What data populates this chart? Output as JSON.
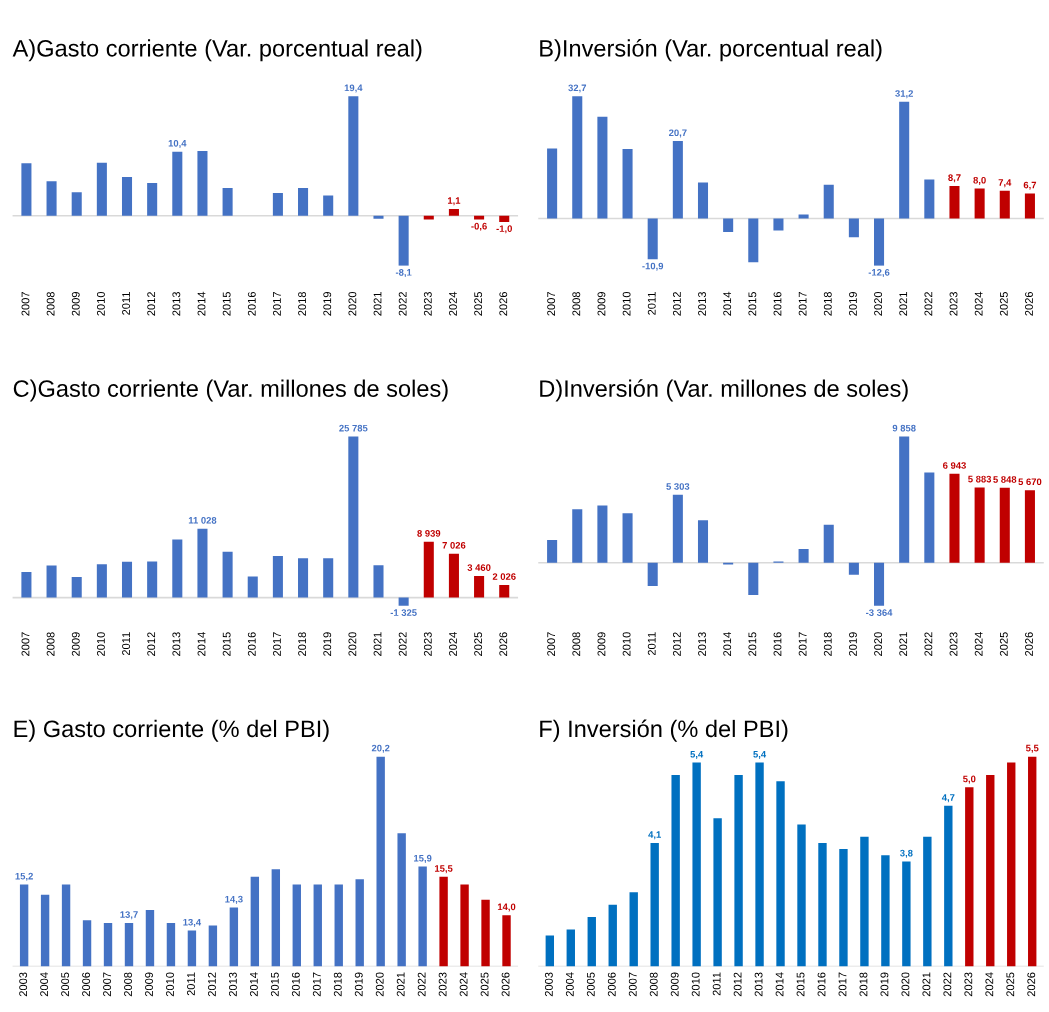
{
  "chart_data": [
    {
      "type": "bar",
      "title": "A)Gasto corriente (Var. porcentual real)",
      "tick_labels": "x",
      "categories": [
        "2007",
        "2008",
        "2009",
        "2010",
        "2011",
        "2012",
        "2013",
        "2014",
        "2015",
        "2016",
        "2017",
        "2018",
        "2019",
        "2020",
        "2021",
        "2022",
        "2023",
        "2024",
        "2025",
        "2026"
      ],
      "values": [
        8.5,
        5.6,
        3.8,
        8.6,
        6.3,
        5.3,
        10.4,
        10.5,
        4.5,
        0.0,
        3.7,
        4.5,
        3.3,
        19.4,
        -0.5,
        -8.1,
        -0.6,
        1.1,
        -0.6,
        -1.0
      ],
      "colors": [
        "#4472c4",
        "#4472c4",
        "#4472c4",
        "#4472c4",
        "#4472c4",
        "#4472c4",
        "#4472c4",
        "#4472c4",
        "#4472c4",
        "#4472c4",
        "#4472c4",
        "#4472c4",
        "#4472c4",
        "#4472c4",
        "#4472c4",
        "#4472c4",
        "#c00000",
        "#c00000",
        "#c00000",
        "#c00000"
      ],
      "value_labels": [
        null,
        null,
        null,
        null,
        null,
        null,
        "10,4",
        null,
        null,
        null,
        null,
        null,
        null,
        "19,4",
        null,
        "-8,1",
        null,
        "1,1",
        "-0,6",
        "-1,0"
      ],
      "grid": false
    },
    {
      "type": "bar",
      "title": "B)Inversión (Var. porcentual real)",
      "tick_labels": "x",
      "categories": [
        "2007",
        "2008",
        "2009",
        "2010",
        "2011",
        "2012",
        "2013",
        "2014",
        "2015",
        "2016",
        "2017",
        "2018",
        "2019",
        "2020",
        "2021",
        "2022",
        "2023",
        "2024",
        "2025",
        "2026"
      ],
      "values": [
        18.7,
        32.7,
        27.2,
        18.6,
        -10.9,
        20.7,
        9.6,
        -3.6,
        -11.7,
        -3.2,
        1.1,
        9.0,
        -5.0,
        -12.6,
        31.2,
        10.4,
        8.7,
        8.0,
        7.4,
        6.7
      ],
      "colors": [
        "#4472c4",
        "#4472c4",
        "#4472c4",
        "#4472c4",
        "#4472c4",
        "#4472c4",
        "#4472c4",
        "#4472c4",
        "#4472c4",
        "#4472c4",
        "#4472c4",
        "#4472c4",
        "#4472c4",
        "#4472c4",
        "#4472c4",
        "#4472c4",
        "#c00000",
        "#c00000",
        "#c00000",
        "#c00000"
      ],
      "value_labels": [
        null,
        "32,7",
        null,
        null,
        "-10,9",
        "20,7",
        null,
        null,
        null,
        null,
        null,
        null,
        null,
        "-12,6",
        "31,2",
        null,
        "8,7",
        "8,0",
        "7,4",
        "6,7"
      ],
      "grid": false
    },
    {
      "type": "bar",
      "title": "C)Gasto corriente (Var. millones de soles)",
      "tick_labels": "x",
      "categories": [
        "2007",
        "2008",
        "2009",
        "2010",
        "2011",
        "2012",
        "2013",
        "2014",
        "2015",
        "2016",
        "2017",
        "2018",
        "2019",
        "2020",
        "2021",
        "2022",
        "2023",
        "2024",
        "2025",
        "2026"
      ],
      "values": [
        4100,
        5130,
        3310,
        5340,
        5740,
        5770,
        9310,
        11028,
        7330,
        3390,
        6640,
        6300,
        6300,
        25785,
        5160,
        -1325,
        8939,
        7026,
        3460,
        2026
      ],
      "colors": [
        "#4472c4",
        "#4472c4",
        "#4472c4",
        "#4472c4",
        "#4472c4",
        "#4472c4",
        "#4472c4",
        "#4472c4",
        "#4472c4",
        "#4472c4",
        "#4472c4",
        "#4472c4",
        "#4472c4",
        "#4472c4",
        "#4472c4",
        "#4472c4",
        "#c00000",
        "#c00000",
        "#c00000",
        "#c00000"
      ],
      "value_labels": [
        null,
        null,
        null,
        null,
        null,
        null,
        null,
        "11 028",
        null,
        null,
        null,
        null,
        null,
        "25 785",
        null,
        "-1 325",
        "8 939",
        "7 026",
        "3 460",
        "2 026"
      ],
      "grid": false
    },
    {
      "type": "bar",
      "title": "D)Inversión (Var. millones de soles)",
      "tick_labels": "x",
      "categories": [
        "2007",
        "2008",
        "2009",
        "2010",
        "2011",
        "2012",
        "2013",
        "2014",
        "2015",
        "2016",
        "2017",
        "2018",
        "2019",
        "2020",
        "2021",
        "2022",
        "2023",
        "2024",
        "2025",
        "2026"
      ],
      "values": [
        1770,
        4180,
        4470,
        3870,
        -1820,
        5303,
        3320,
        -140,
        -2510,
        100,
        1080,
        2960,
        -930,
        -3364,
        9858,
        7050,
        6943,
        5883,
        5848,
        5670
      ],
      "colors": [
        "#4472c4",
        "#4472c4",
        "#4472c4",
        "#4472c4",
        "#4472c4",
        "#4472c4",
        "#4472c4",
        "#4472c4",
        "#4472c4",
        "#4472c4",
        "#4472c4",
        "#4472c4",
        "#4472c4",
        "#4472c4",
        "#4472c4",
        "#4472c4",
        "#c00000",
        "#c00000",
        "#c00000",
        "#c00000"
      ],
      "value_labels": [
        null,
        null,
        null,
        null,
        null,
        "5 303",
        null,
        null,
        null,
        null,
        null,
        null,
        null,
        "-3 364",
        "9 858",
        null,
        "6 943",
        "5 883",
        "5 848",
        "5 670"
      ],
      "grid": false
    },
    {
      "type": "bar",
      "title": "E) Gasto corriente (% del PBI)",
      "tick_labels": "x",
      "categories": [
        "2003",
        "2004",
        "2005",
        "2006",
        "2007",
        "2008",
        "2009",
        "2010",
        "2011",
        "2012",
        "2013",
        "2014",
        "2015",
        "2016",
        "2017",
        "2018",
        "2019",
        "2020",
        "2021",
        "2022",
        "2023",
        "2024",
        "2025",
        "2026"
      ],
      "values": [
        15.2,
        14.8,
        15.2,
        13.8,
        13.7,
        13.7,
        14.2,
        13.7,
        13.4,
        13.6,
        14.3,
        15.5,
        15.8,
        15.2,
        15.2,
        15.2,
        15.4,
        20.2,
        17.2,
        15.9,
        15.5,
        15.2,
        14.6,
        14.0
      ],
      "colors": [
        "#4472c4",
        "#4472c4",
        "#4472c4",
        "#4472c4",
        "#4472c4",
        "#4472c4",
        "#4472c4",
        "#4472c4",
        "#4472c4",
        "#4472c4",
        "#4472c4",
        "#4472c4",
        "#4472c4",
        "#4472c4",
        "#4472c4",
        "#4472c4",
        "#4472c4",
        "#4472c4",
        "#4472c4",
        "#4472c4",
        "#c00000",
        "#c00000",
        "#c00000",
        "#c00000"
      ],
      "value_labels": [
        "15,2",
        null,
        null,
        null,
        null,
        "13,7",
        null,
        null,
        "13,4",
        null,
        "14,3",
        null,
        null,
        null,
        null,
        null,
        null,
        "20,2",
        null,
        "15,9",
        "15,5",
        null,
        null,
        "14,0"
      ],
      "ylim": [
        12.0,
        20.2
      ]
    },
    {
      "type": "bar",
      "title": "F) Inversión (% del PBI)",
      "tick_labels": "x",
      "categories": [
        "2003",
        "2004",
        "2005",
        "2006",
        "2007",
        "2008",
        "2009",
        "2010",
        "2011",
        "2012",
        "2013",
        "2014",
        "2015",
        "2016",
        "2017",
        "2018",
        "2019",
        "2020",
        "2021",
        "2022",
        "2023",
        "2024",
        "2025",
        "2026"
      ],
      "values": [
        2.6,
        2.7,
        2.9,
        3.1,
        3.3,
        4.1,
        5.2,
        5.4,
        4.5,
        5.2,
        5.4,
        5.1,
        4.4,
        4.1,
        4.0,
        4.2,
        3.9,
        3.8,
        4.2,
        4.7,
        5.0,
        5.2,
        5.4,
        5.5
      ],
      "colors": [
        "#0070c0",
        "#0070c0",
        "#0070c0",
        "#0070c0",
        "#0070c0",
        "#0070c0",
        "#0070c0",
        "#0070c0",
        "#0070c0",
        "#0070c0",
        "#0070c0",
        "#0070c0",
        "#0070c0",
        "#0070c0",
        "#0070c0",
        "#0070c0",
        "#0070c0",
        "#0070c0",
        "#0070c0",
        "#0070c0",
        "#c00000",
        "#c00000",
        "#c00000",
        "#c00000"
      ],
      "value_labels": [
        null,
        null,
        null,
        null,
        null,
        "4,1",
        null,
        "5,4",
        null,
        null,
        "5,4",
        null,
        null,
        null,
        null,
        null,
        null,
        "3,8",
        null,
        "4,7",
        "5,0",
        null,
        null,
        "5,5"
      ],
      "ylim": [
        2.1,
        5.5
      ]
    }
  ]
}
